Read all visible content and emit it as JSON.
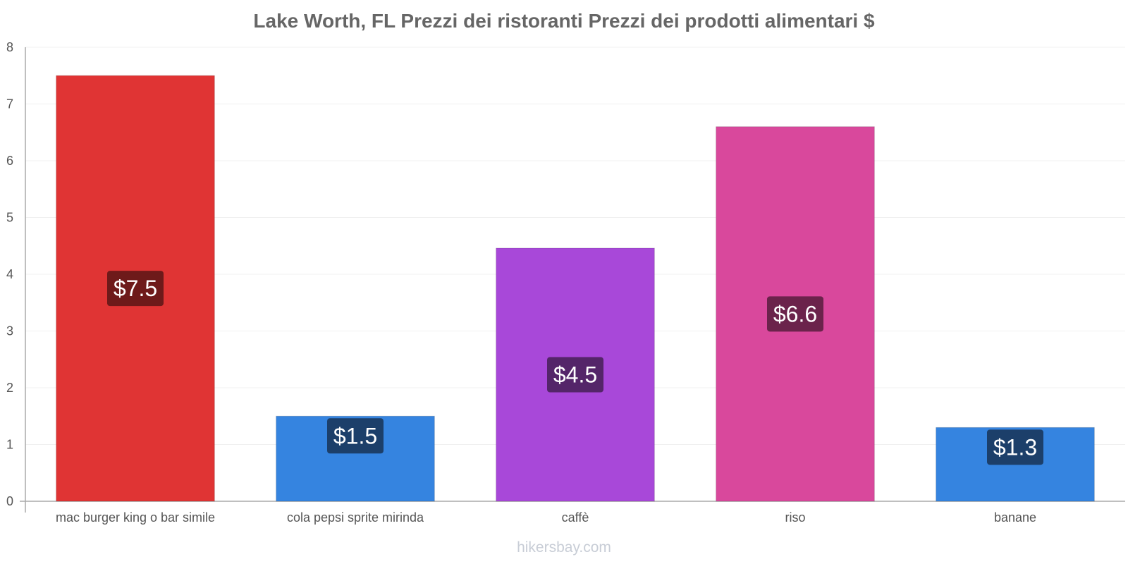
{
  "chart_data": {
    "type": "bar",
    "title": "Lake Worth, FL Prezzi dei ristoranti Prezzi dei prodotti alimentari $",
    "categories": [
      "mac burger king o bar simile",
      "cola pepsi sprite mirinda",
      "caffè",
      "riso",
      "banane"
    ],
    "values": [
      7.5,
      1.5,
      4.46,
      6.6,
      1.3
    ],
    "value_labels": [
      "$7.5",
      "$1.5",
      "$4.5",
      "$6.6",
      "$1.3"
    ],
    "bar_colors": [
      "#e03434",
      "#3584e0",
      "#a848d9",
      "#d9489c",
      "#3584e0"
    ],
    "label_bg_colors": [
      "#6e1a1a",
      "#1c3f6a",
      "#542569",
      "#6b234b",
      "#1c3f6a"
    ],
    "ylim": [
      0,
      8
    ],
    "yticks": [
      0,
      1,
      2,
      3,
      4,
      5,
      6,
      7,
      8
    ],
    "xlabel": "",
    "ylabel": "",
    "grid": true
  },
  "watermark": "hikersbay.com"
}
